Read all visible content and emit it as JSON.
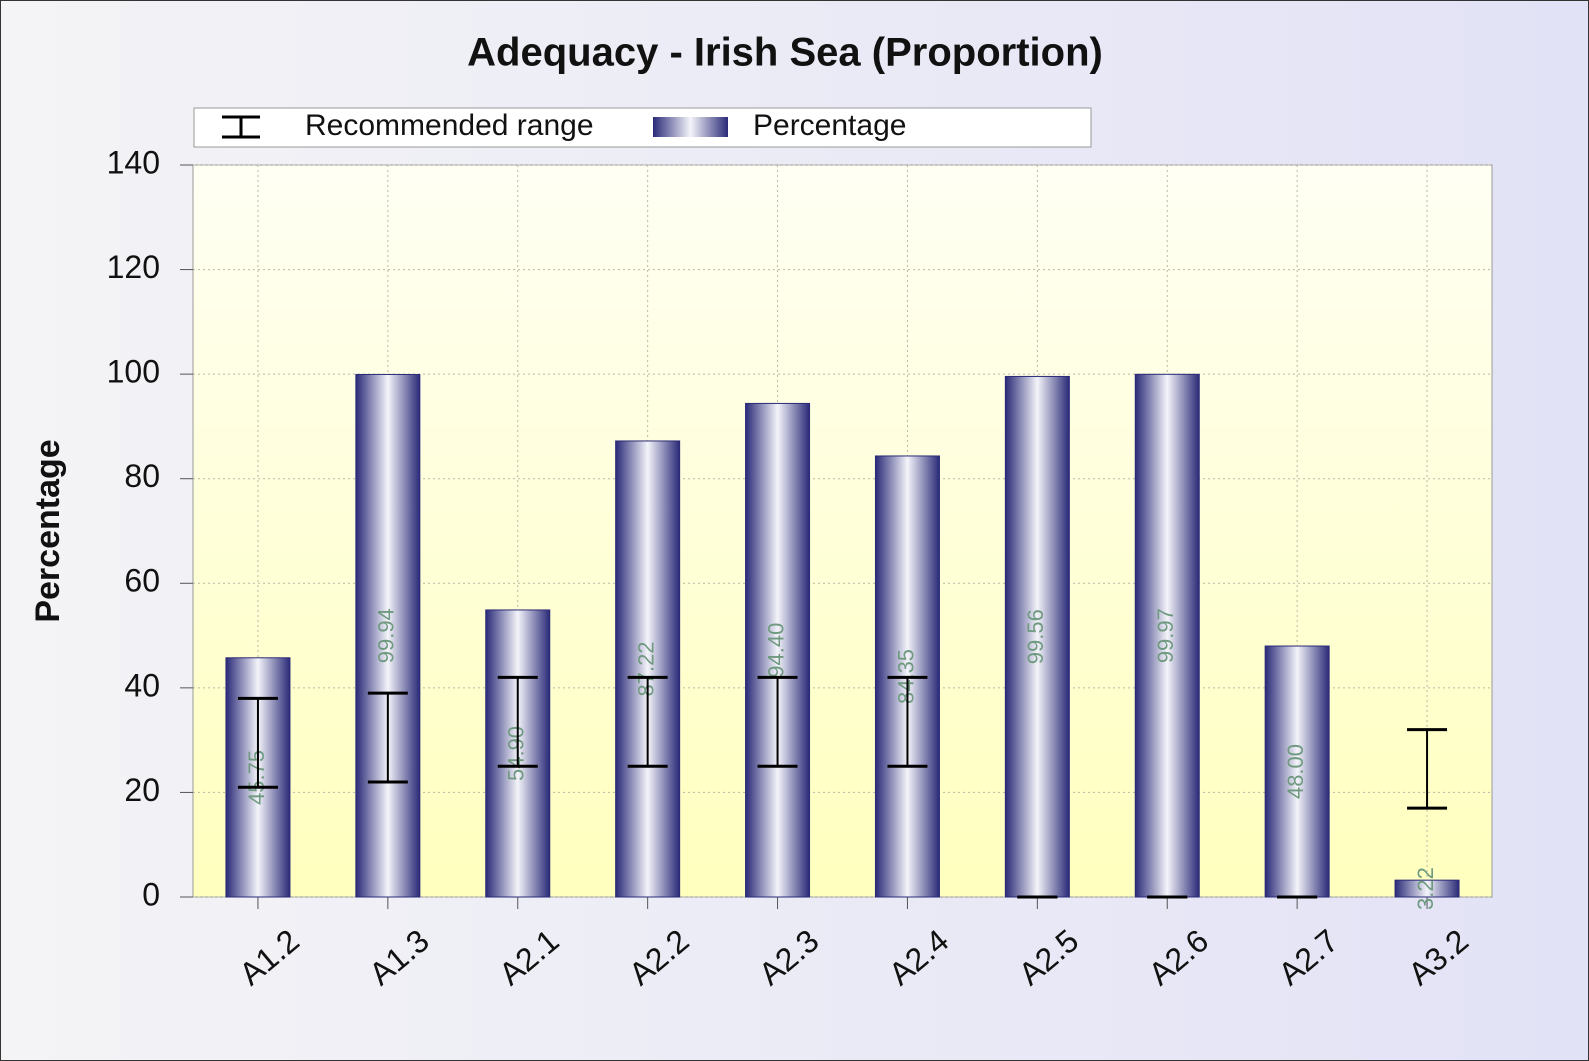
{
  "chart_data": {
    "type": "bar",
    "title": "Adequacy - Irish Sea (Proportion)",
    "y_label": "Percentage",
    "categories": [
      "A1.2",
      "A1.3",
      "A2.1",
      "A2.2",
      "A2.3",
      "A2.4",
      "A2.5",
      "A2.6",
      "A2.7",
      "A3.2"
    ],
    "series": [
      {
        "name": "Recommended range",
        "color": "#000000",
        "low": [
          21,
          22,
          25,
          25,
          25,
          25,
          0,
          0,
          0,
          17
        ],
        "high": [
          38,
          39,
          42,
          42,
          42,
          42,
          0,
          0,
          0,
          32
        ]
      },
      {
        "name": "Percentage",
        "color": "#2a2a78",
        "values": [
          45.75,
          99.94,
          54.9,
          87.22,
          94.4,
          84.35,
          99.56,
          99.97,
          48,
          3.22
        ],
        "value_labels": [
          "45.75",
          "99.94",
          "54.90",
          "87.22",
          "94.40",
          "84.35",
          "99.56",
          "99.97",
          "48.00",
          "3.22"
        ]
      }
    ],
    "ylim": [
      0,
      140
    ],
    "yticks": [
      0,
      20,
      40,
      60,
      80,
      100,
      120,
      140
    ],
    "grid": true,
    "legend": "top"
  }
}
